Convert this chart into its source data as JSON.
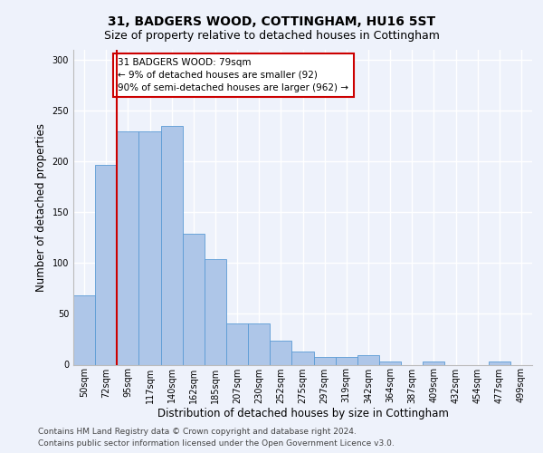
{
  "title": "31, BADGERS WOOD, COTTINGHAM, HU16 5ST",
  "subtitle": "Size of property relative to detached houses in Cottingham",
  "xlabel": "Distribution of detached houses by size in Cottingham",
  "ylabel": "Number of detached properties",
  "categories": [
    "50sqm",
    "72sqm",
    "95sqm",
    "117sqm",
    "140sqm",
    "162sqm",
    "185sqm",
    "207sqm",
    "230sqm",
    "252sqm",
    "275sqm",
    "297sqm",
    "319sqm",
    "342sqm",
    "364sqm",
    "387sqm",
    "409sqm",
    "432sqm",
    "454sqm",
    "477sqm",
    "499sqm"
  ],
  "values": [
    68,
    197,
    230,
    230,
    235,
    129,
    104,
    41,
    41,
    24,
    13,
    8,
    8,
    9,
    3,
    0,
    3,
    0,
    0,
    3,
    0
  ],
  "bar_color": "#aec6e8",
  "bar_edge_color": "#5b9bd5",
  "vline_x": 1.5,
  "vline_color": "#cc0000",
  "annotation_text": "31 BADGERS WOOD: 79sqm\n← 9% of detached houses are smaller (92)\n90% of semi-detached houses are larger (962) →",
  "annotation_box_color": "#ffffff",
  "annotation_box_edge_color": "#cc0000",
  "ylim": [
    0,
    310
  ],
  "yticks": [
    0,
    50,
    100,
    150,
    200,
    250,
    300
  ],
  "background_color": "#eef2fb",
  "axes_background_color": "#eef2fb",
  "grid_color": "#ffffff",
  "footer_line1": "Contains HM Land Registry data © Crown copyright and database right 2024.",
  "footer_line2": "Contains public sector information licensed under the Open Government Licence v3.0.",
  "title_fontsize": 10,
  "subtitle_fontsize": 9,
  "xlabel_fontsize": 8.5,
  "ylabel_fontsize": 8.5,
  "tick_fontsize": 7,
  "annotation_fontsize": 7.5,
  "footer_fontsize": 6.5
}
